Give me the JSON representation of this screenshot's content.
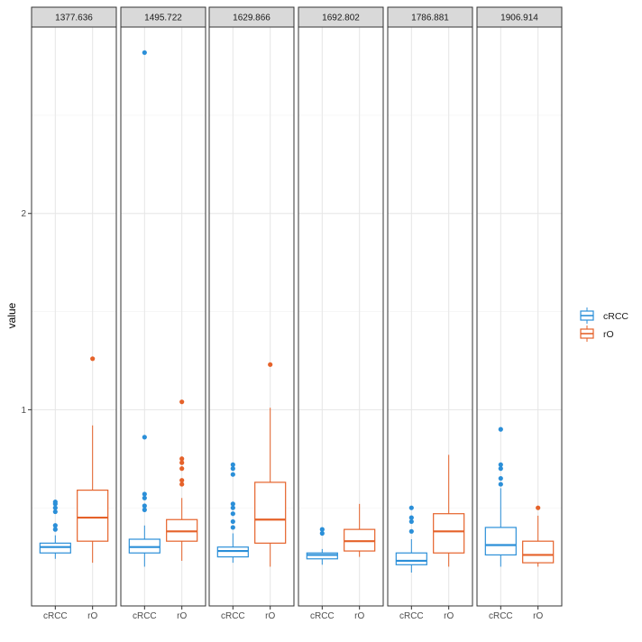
{
  "chart_data": {
    "type": "boxplot",
    "title": "",
    "xlabel": "",
    "ylabel": "value",
    "ylim": [
      0.0,
      2.95
    ],
    "yticks": [
      1,
      2
    ],
    "grid": true,
    "legend_position": "right",
    "categories": [
      "cRCC",
      "rO"
    ],
    "colors": {
      "cRCC": "#2b8fd8",
      "rO": "#e5622a"
    },
    "legend": [
      {
        "label": "cRCC",
        "color": "#2b8fd8"
      },
      {
        "label": "rO",
        "color": "#e5622a"
      }
    ],
    "panels": [
      {
        "label": "1377.636",
        "boxes": [
          {
            "group": "cRCC",
            "min": 0.24,
            "q1": 0.27,
            "median": 0.3,
            "q3": 0.32,
            "max": 0.36,
            "outliers": [
              0.39,
              0.41,
              0.48,
              0.5,
              0.52,
              0.53
            ]
          },
          {
            "group": "rO",
            "min": 0.22,
            "q1": 0.33,
            "median": 0.45,
            "q3": 0.59,
            "max": 0.92,
            "outliers": [
              1.26
            ]
          }
        ]
      },
      {
        "label": "1495.722",
        "boxes": [
          {
            "group": "cRCC",
            "min": 0.2,
            "q1": 0.27,
            "median": 0.3,
            "q3": 0.34,
            "max": 0.41,
            "outliers": [
              0.49,
              0.51,
              0.55,
              0.57,
              0.86,
              2.82
            ]
          },
          {
            "group": "rO",
            "min": 0.23,
            "q1": 0.33,
            "median": 0.38,
            "q3": 0.44,
            "max": 0.55,
            "outliers": [
              0.62,
              0.64,
              0.7,
              0.73,
              0.75,
              1.04
            ]
          }
        ]
      },
      {
        "label": "1629.866",
        "boxes": [
          {
            "group": "cRCC",
            "min": 0.22,
            "q1": 0.25,
            "median": 0.28,
            "q3": 0.3,
            "max": 0.37,
            "outliers": [
              0.4,
              0.43,
              0.47,
              0.5,
              0.52,
              0.67,
              0.7,
              0.72
            ]
          },
          {
            "group": "rO",
            "min": 0.2,
            "q1": 0.32,
            "median": 0.44,
            "q3": 0.63,
            "max": 1.01,
            "outliers": [
              1.23
            ]
          }
        ]
      },
      {
        "label": "1692.802",
        "boxes": [
          {
            "group": "cRCC",
            "min": 0.21,
            "q1": 0.24,
            "median": 0.26,
            "q3": 0.27,
            "max": 0.29,
            "outliers": [
              0.37,
              0.39
            ]
          },
          {
            "group": "rO",
            "min": 0.25,
            "q1": 0.28,
            "median": 0.33,
            "q3": 0.39,
            "max": 0.52,
            "outliers": []
          }
        ]
      },
      {
        "label": "1786.881",
        "boxes": [
          {
            "group": "cRCC",
            "min": 0.17,
            "q1": 0.21,
            "median": 0.23,
            "q3": 0.27,
            "max": 0.34,
            "outliers": [
              0.38,
              0.43,
              0.45,
              0.5
            ]
          },
          {
            "group": "rO",
            "min": 0.2,
            "q1": 0.27,
            "median": 0.38,
            "q3": 0.47,
            "max": 0.77,
            "outliers": []
          }
        ]
      },
      {
        "label": "1906.914",
        "boxes": [
          {
            "group": "cRCC",
            "min": 0.2,
            "q1": 0.26,
            "median": 0.31,
            "q3": 0.4,
            "max": 0.6,
            "outliers": [
              0.62,
              0.65,
              0.7,
              0.72,
              0.9
            ]
          },
          {
            "group": "rO",
            "min": 0.2,
            "q1": 0.22,
            "median": 0.26,
            "q3": 0.33,
            "max": 0.46,
            "outliers": [
              0.5
            ]
          }
        ]
      }
    ]
  }
}
